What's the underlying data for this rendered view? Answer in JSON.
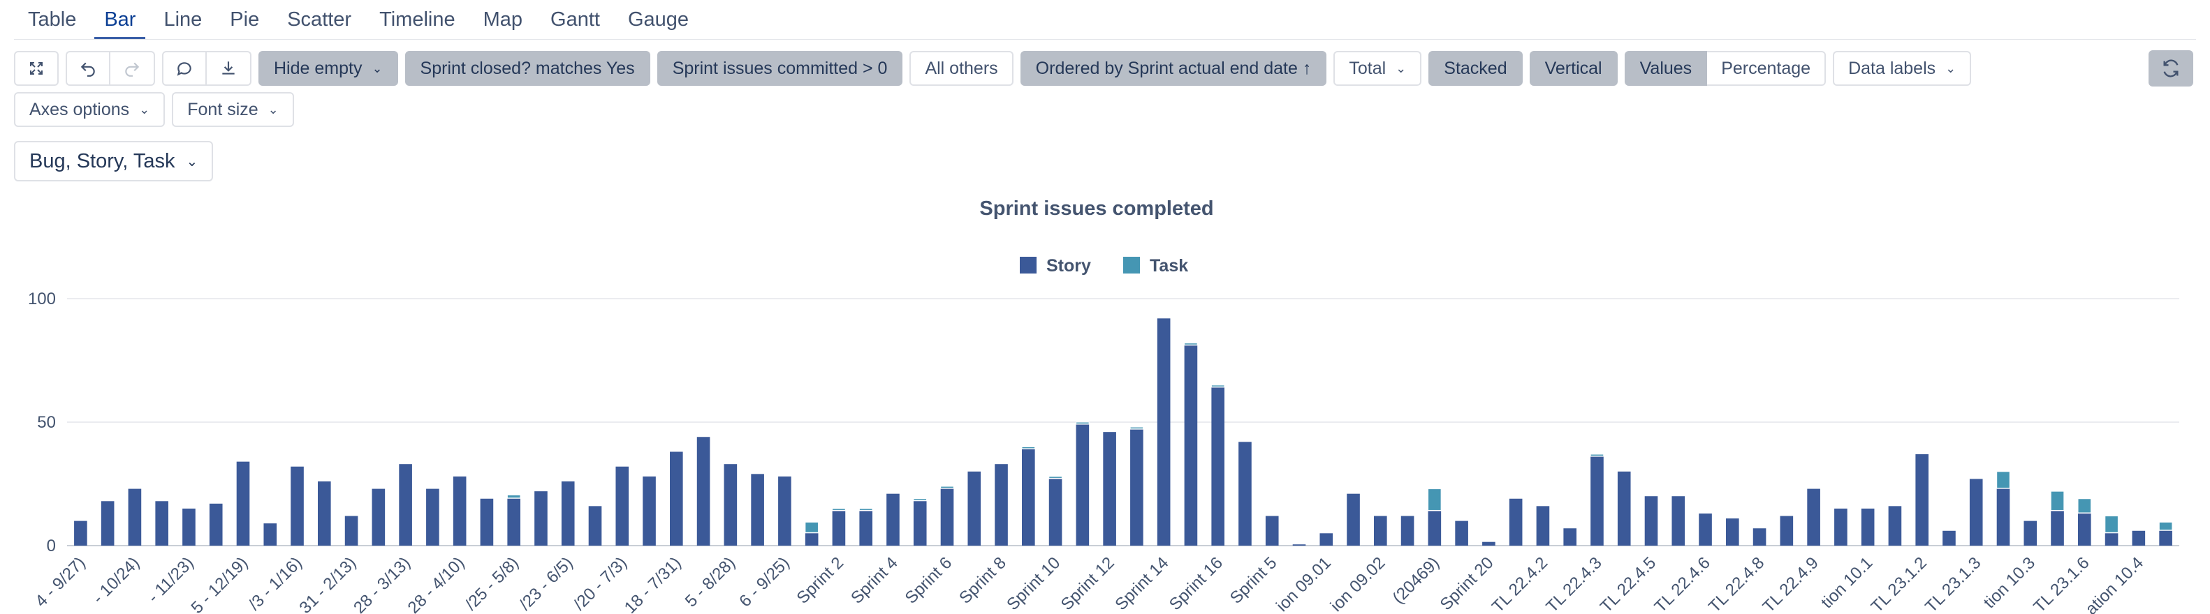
{
  "tabs": [
    {
      "label": "Table",
      "active": false
    },
    {
      "label": "Bar",
      "active": true
    },
    {
      "label": "Line",
      "active": false
    },
    {
      "label": "Pie",
      "active": false
    },
    {
      "label": "Scatter",
      "active": false
    },
    {
      "label": "Timeline",
      "active": false
    },
    {
      "label": "Map",
      "active": false
    },
    {
      "label": "Gantt",
      "active": false
    },
    {
      "label": "Gauge",
      "active": false
    }
  ],
  "toolbar": {
    "fullscreen_icon": "fullscreen-icon",
    "undo_icon": "undo-icon",
    "redo_icon": "redo-icon",
    "comment_icon": "comment-icon",
    "download_icon": "download-icon",
    "hide_empty": "Hide empty",
    "filter_closed": "Sprint closed? matches Yes",
    "filter_committed": "Sprint issues committed > 0",
    "all_others": "All others",
    "ordered_by": "Ordered by Sprint actual end date ↑",
    "total": "Total",
    "stacked": "Stacked",
    "vertical": "Vertical",
    "values": "Values",
    "percentage": "Percentage",
    "data_labels": "Data labels",
    "axes_options": "Axes options",
    "font_size": "Font size",
    "refresh_icon": "refresh-icon"
  },
  "issue_filter": "Bug, Story, Task",
  "colors": {
    "story": "#3b5998",
    "task": "#4596b3",
    "accent": "#3b5fa8"
  },
  "chart_data": {
    "type": "bar",
    "stacked": true,
    "title": "Sprint issues completed",
    "xlabel": "",
    "ylabel": "",
    "ylim": [
      0,
      100
    ],
    "yticks": [
      0,
      50,
      100
    ],
    "grid": true,
    "legend": {
      "position": "top-center",
      "entries": [
        "Story",
        "Task"
      ]
    },
    "x_tick_labels": [
      "4 - 9/27)",
      "- 10/24)",
      "- 11/23)",
      "5 - 12/19)",
      "/3 - 1/16)",
      "31 - 2/13)",
      "28 - 3/13)",
      "28 - 4/10)",
      "/25 - 5/8)",
      "/23 - 6/5)",
      "/20 - 7/3)",
      "18 - 7/31)",
      "5 - 8/28)",
      "6 - 9/25)",
      "Sprint 2",
      "Sprint 4",
      "Sprint 6",
      "Sprint 8",
      "Sprint 10",
      "Sprint 12",
      "Sprint 14",
      "Sprint 16",
      "Sprint 5",
      "ion 09.01",
      "ion 09.02",
      "(20469)",
      "Sprint 20",
      "TL 22.4.2",
      "TL 22.4.3",
      "TL 22.4.5",
      "TL 22.4.6",
      "TL 22.4.8",
      "TL 22.4.9",
      "tion 10.1",
      "TL 23.1.2",
      "TL 23.1.3",
      "tion 10.3",
      "TL 23.1.6",
      "ation 10.4"
    ],
    "series": [
      {
        "name": "Story",
        "values": [
          10,
          18,
          23,
          18,
          15,
          17,
          34,
          9,
          32,
          26,
          12,
          23,
          33,
          23,
          28,
          19,
          19,
          22,
          26,
          16,
          32,
          28,
          38,
          44,
          33,
          29,
          28,
          5,
          14,
          14,
          21,
          18,
          23,
          30,
          33,
          39,
          27,
          49,
          46,
          47,
          92,
          81,
          64,
          42,
          12,
          0.5,
          5,
          21,
          12,
          12,
          14,
          10,
          1.5,
          19,
          16,
          7,
          36,
          30,
          20,
          20,
          13,
          11,
          7,
          12,
          23,
          15,
          15,
          16,
          37,
          6,
          27,
          23,
          10,
          14,
          13,
          5,
          6,
          6
        ]
      },
      {
        "name": "Task",
        "values": [
          0,
          0,
          0,
          0,
          0,
          0,
          0,
          0,
          0,
          0,
          0,
          0,
          0,
          0,
          0,
          0,
          1.5,
          0,
          0,
          0,
          0,
          0,
          0,
          0,
          0,
          0,
          0,
          4.5,
          1,
          1,
          0,
          1,
          1,
          0,
          0,
          1,
          1,
          1,
          0,
          1,
          0,
          1,
          1,
          0,
          0,
          0,
          0,
          0,
          0,
          0,
          9,
          0,
          0,
          0,
          0,
          0,
          1,
          0,
          0,
          0,
          0,
          0,
          0,
          0,
          0,
          0,
          0,
          0,
          0,
          0,
          0,
          7,
          0,
          8,
          6,
          7,
          0,
          3.5
        ]
      }
    ]
  }
}
